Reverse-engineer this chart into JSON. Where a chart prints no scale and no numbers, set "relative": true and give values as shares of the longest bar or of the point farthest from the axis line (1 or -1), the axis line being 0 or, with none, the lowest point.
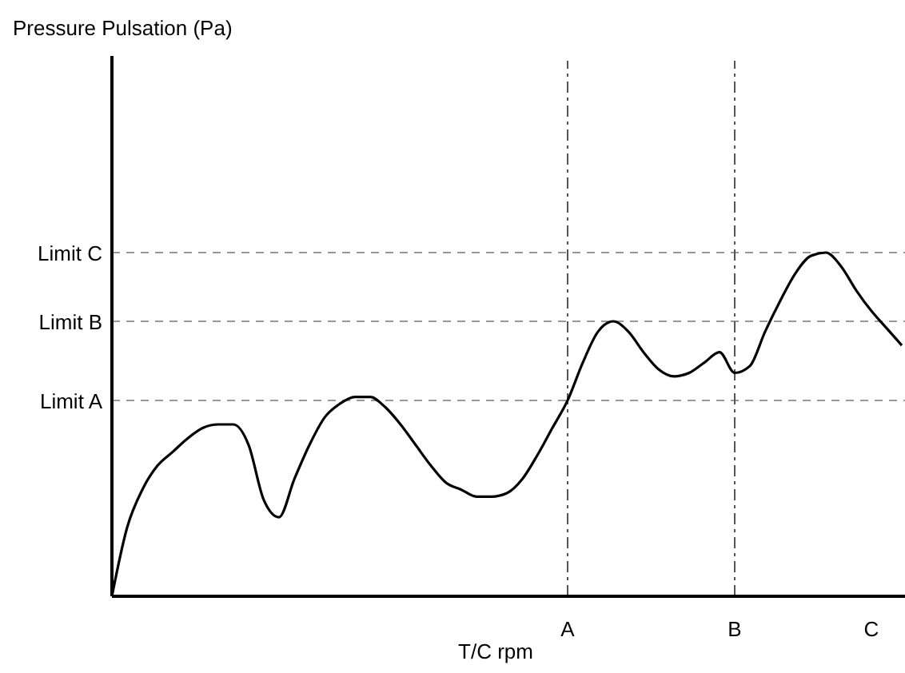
{
  "chart_data": {
    "type": "line",
    "relative": true,
    "annotations": [
      "Pressure Pulsation (Pa)"
    ],
    "xlabel": "T/C rpm",
    "categories": [
      null,
      null,
      null,
      null,
      null,
      null,
      null,
      null,
      null,
      null,
      null,
      null,
      null,
      null,
      null,
      null,
      null,
      null,
      null,
      null,
      null,
      null,
      null,
      null,
      null,
      null,
      null,
      null,
      null,
      null,
      "A",
      null,
      null,
      null,
      null,
      null,
      null,
      null,
      null,
      null,
      null,
      "B",
      null,
      null,
      null,
      null,
      null,
      null,
      null,
      null,
      "C",
      null,
      null
    ],
    "series": [
      {
        "color": "#000000",
        "values": [
          0,
          0.2,
          0.31,
          0.38,
          0.42,
          0.46,
          0.49,
          0.5,
          0.5,
          0.44,
          0.28,
          0.23,
          0.34,
          0.44,
          0.52,
          0.56,
          0.58,
          0.58,
          0.55,
          0.5,
          0.44,
          0.38,
          0.33,
          0.31,
          0.29,
          0.29,
          0.3,
          0.34,
          0.41,
          0.49,
          0.57,
          0.68,
          0.77,
          0.8,
          0.77,
          0.71,
          0.66,
          0.64,
          0.65,
          0.68,
          0.71,
          0.65,
          0.67,
          0.77,
          0.86,
          0.94,
          0.99,
          1.0,
          0.96,
          0.89,
          0.83,
          0.78,
          0.73
        ]
      }
    ],
    "ref_lines": [
      {
        "axis": "y",
        "value": 0.57,
        "label": "Limit A",
        "line_style": "dashed",
        "color": "#999999"
      },
      {
        "axis": "y",
        "value": 0.8,
        "label": "Limit B",
        "line_style": "dashed",
        "color": "#999999"
      },
      {
        "axis": "y",
        "value": 1.0,
        "label": "Limit C",
        "line_style": "dashed",
        "color": "#999999"
      },
      {
        "axis": "x",
        "value": "A",
        "line_style": "dashdot",
        "color": "#555555"
      },
      {
        "axis": "x",
        "value": "B",
        "line_style": "dashdot",
        "color": "#555555"
      }
    ],
    "marker": "none",
    "line_style": "solid"
  }
}
